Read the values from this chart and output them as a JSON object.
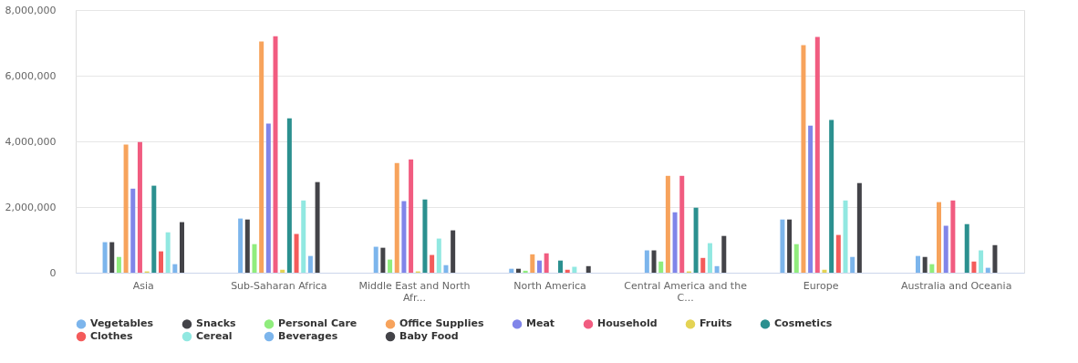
{
  "chart_data": {
    "type": "bar",
    "categories": [
      "Asia",
      "Sub-Saharan Africa",
      "Middle East and North Afr...",
      "North America",
      "Central America and the C...",
      "Europe",
      "Australia and Oceania"
    ],
    "series": [
      {
        "name": "Vegetables",
        "color": "#7cb5ec",
        "values": [
          930000,
          1650000,
          790000,
          120000,
          680000,
          1620000,
          510000
        ]
      },
      {
        "name": "Snacks",
        "color": "#434348",
        "values": [
          930000,
          1620000,
          760000,
          120000,
          680000,
          1620000,
          480000
        ]
      },
      {
        "name": "Personal Care",
        "color": "#90ed7d",
        "values": [
          480000,
          870000,
          400000,
          60000,
          340000,
          870000,
          260000
        ]
      },
      {
        "name": "Office Supplies",
        "color": "#f7a35c",
        "values": [
          3900000,
          7040000,
          3340000,
          560000,
          2950000,
          6930000,
          2150000
        ]
      },
      {
        "name": "Meat",
        "color": "#8085e9",
        "values": [
          2560000,
          4540000,
          2180000,
          370000,
          1840000,
          4480000,
          1430000
        ]
      },
      {
        "name": "Household",
        "color": "#f15c80",
        "values": [
          3980000,
          7200000,
          3450000,
          590000,
          2950000,
          7180000,
          2200000
        ]
      },
      {
        "name": "Fruits",
        "color": "#e4d354",
        "values": [
          40000,
          90000,
          40000,
          null,
          40000,
          90000,
          null
        ]
      },
      {
        "name": "Cosmetics",
        "color": "#2b908f",
        "values": [
          2650000,
          4700000,
          2230000,
          370000,
          1980000,
          4650000,
          1480000
        ]
      },
      {
        "name": "Clothes",
        "color": "#f45b5b",
        "values": [
          650000,
          1180000,
          540000,
          90000,
          450000,
          1150000,
          340000
        ]
      },
      {
        "name": "Cereal",
        "color": "#91e8e1",
        "values": [
          1230000,
          2200000,
          1040000,
          180000,
          900000,
          2200000,
          680000
        ]
      },
      {
        "name": "Beverages",
        "color": "#7cb5ec",
        "values": [
          260000,
          510000,
          230000,
          null,
          200000,
          480000,
          150000
        ]
      },
      {
        "name": "Baby Food",
        "color": "#434348",
        "values": [
          1540000,
          2760000,
          1290000,
          200000,
          1120000,
          2730000,
          840000
        ]
      }
    ],
    "ylim": [
      0,
      8000000
    ],
    "yticks": [
      0,
      {
        "value": 2000000,
        "label": "2,000,000"
      },
      {
        "value": 4000000,
        "label": "4,000,000"
      },
      {
        "value": 6000000,
        "label": "6,000,000"
      },
      {
        "value": 8000000,
        "label": "8,000,000"
      }
    ],
    "grid": "y",
    "legend": "bottom"
  }
}
